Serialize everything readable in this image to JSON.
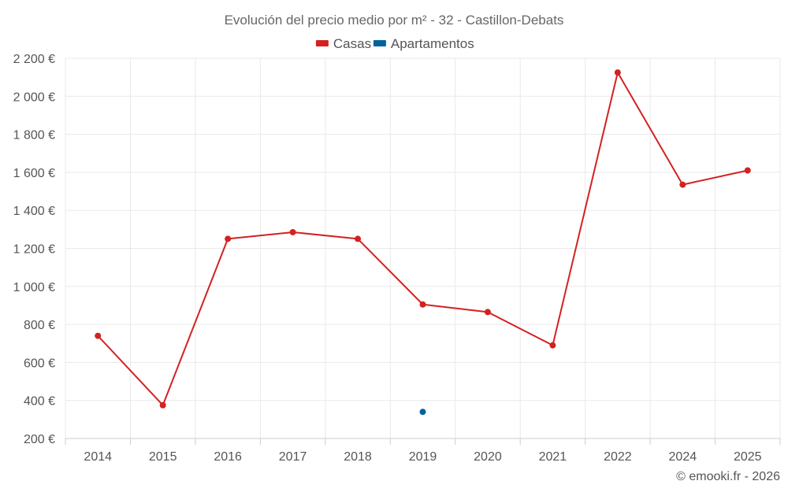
{
  "chart_data": {
    "type": "line",
    "title": "Evolución del precio medio por m² - 32 - Castillon-Debats",
    "categories": [
      "2014",
      "2015",
      "2016",
      "2017",
      "2018",
      "2019",
      "2020",
      "2021",
      "2022",
      "2024",
      "2025"
    ],
    "series": [
      {
        "name": "Casas",
        "color": "#d42121",
        "values": [
          740,
          375,
          1250,
          1285,
          1250,
          905,
          865,
          690,
          2125,
          1535,
          1610
        ]
      },
      {
        "name": "Apartamentos",
        "color": "#00639e",
        "values": [
          null,
          null,
          null,
          null,
          null,
          340,
          null,
          null,
          null,
          null,
          null
        ]
      }
    ],
    "ylim": [
      200,
      2200
    ],
    "yticks": [
      200,
      400,
      600,
      800,
      1000,
      1200,
      1400,
      1600,
      1800,
      2000,
      2200
    ],
    "ytick_labels": [
      "200 €",
      "400 €",
      "600 €",
      "800 €",
      "1 000 €",
      "1 200 €",
      "1 400 €",
      "1 600 €",
      "1 800 €",
      "2 000 €",
      "2 200 €"
    ],
    "grid": true,
    "legend_position": "top-center",
    "credit": "© emooki.fr - 2026"
  }
}
